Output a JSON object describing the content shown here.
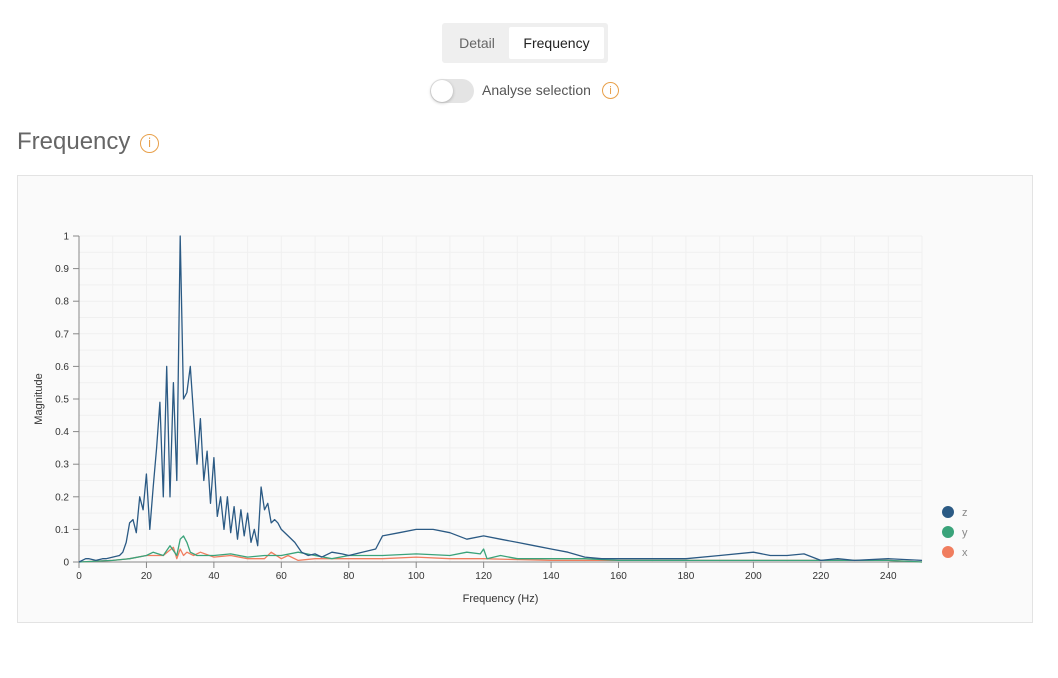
{
  "tabs": [
    {
      "label": "Detail",
      "active": false
    },
    {
      "label": "Frequency",
      "active": true
    }
  ],
  "analyse_toggle": {
    "label": "Analyse selection",
    "on": false,
    "info_icon": "info-circle-icon"
  },
  "section": {
    "title": "Frequency",
    "info_icon": "info-circle-icon"
  },
  "colors": {
    "accent": "#e8a04a",
    "z": "#2b5a84",
    "y": "#3aa37a",
    "x": "#f07d5e"
  },
  "chart_data": {
    "type": "line",
    "xlabel": "Frequency (Hz)",
    "ylabel": "Magnitude",
    "xlim": [
      0,
      250
    ],
    "ylim": [
      0,
      1
    ],
    "xticks": [
      0,
      20,
      40,
      60,
      80,
      100,
      120,
      140,
      160,
      180,
      200,
      220,
      240
    ],
    "yticks": [
      0,
      0.1,
      0.2,
      0.3,
      0.4,
      0.5,
      0.6,
      0.7,
      0.8,
      0.9,
      1
    ],
    "grid": true,
    "legend_position": "right",
    "series": [
      {
        "name": "z",
        "x": [
          0,
          2,
          3,
          5,
          7,
          8,
          10,
          12,
          13,
          14,
          15,
          16,
          17,
          18,
          19,
          20,
          21,
          22,
          23,
          24,
          25,
          26,
          27,
          28,
          29,
          30,
          31,
          32,
          33,
          34,
          35,
          36,
          37,
          38,
          39,
          40,
          41,
          42,
          43,
          44,
          45,
          46,
          47,
          48,
          49,
          50,
          51,
          52,
          53,
          54,
          55,
          56,
          57,
          58,
          59,
          60,
          62,
          64,
          66,
          68,
          70,
          72,
          75,
          78,
          80,
          84,
          88,
          90,
          95,
          100,
          105,
          110,
          115,
          120,
          125,
          130,
          135,
          140,
          145,
          150,
          155,
          160,
          170,
          180,
          190,
          200,
          205,
          210,
          215,
          220,
          225,
          230,
          240,
          250
        ],
        "y": [
          0,
          0.01,
          0.01,
          0.005,
          0.01,
          0.01,
          0.015,
          0.02,
          0.03,
          0.06,
          0.12,
          0.13,
          0.09,
          0.2,
          0.16,
          0.27,
          0.1,
          0.23,
          0.35,
          0.49,
          0.2,
          0.6,
          0.2,
          0.55,
          0.25,
          1.0,
          0.5,
          0.52,
          0.6,
          0.45,
          0.3,
          0.44,
          0.25,
          0.34,
          0.18,
          0.32,
          0.14,
          0.2,
          0.1,
          0.2,
          0.09,
          0.17,
          0.07,
          0.16,
          0.08,
          0.15,
          0.06,
          0.1,
          0.05,
          0.23,
          0.16,
          0.18,
          0.12,
          0.13,
          0.12,
          0.1,
          0.08,
          0.06,
          0.03,
          0.02,
          0.025,
          0.015,
          0.03,
          0.025,
          0.02,
          0.03,
          0.04,
          0.08,
          0.09,
          0.1,
          0.1,
          0.09,
          0.07,
          0.08,
          0.07,
          0.06,
          0.05,
          0.04,
          0.03,
          0.015,
          0.01,
          0.01,
          0.01,
          0.01,
          0.02,
          0.03,
          0.02,
          0.02,
          0.025,
          0.005,
          0.01,
          0.005,
          0.01,
          0.005
        ]
      },
      {
        "name": "y",
        "x": [
          0,
          10,
          15,
          20,
          22,
          25,
          27,
          29,
          30,
          31,
          32,
          33,
          35,
          40,
          45,
          50,
          55,
          60,
          65,
          70,
          75,
          80,
          90,
          100,
          110,
          115,
          119,
          120,
          121,
          125,
          130,
          140,
          150,
          160,
          180,
          200,
          220,
          240,
          250
        ],
        "y": [
          0,
          0.005,
          0.01,
          0.02,
          0.03,
          0.02,
          0.05,
          0.02,
          0.07,
          0.08,
          0.06,
          0.03,
          0.02,
          0.02,
          0.025,
          0.015,
          0.02,
          0.02,
          0.03,
          0.02,
          0.01,
          0.02,
          0.02,
          0.025,
          0.02,
          0.03,
          0.025,
          0.04,
          0.01,
          0.02,
          0.01,
          0.01,
          0.01,
          0.005,
          0.005,
          0.005,
          0.005,
          0.005,
          0
        ]
      },
      {
        "name": "x",
        "x": [
          0,
          10,
          15,
          20,
          25,
          28,
          29,
          30,
          31,
          32,
          34,
          36,
          40,
          45,
          50,
          55,
          57,
          60,
          62,
          65,
          70,
          80,
          90,
          100,
          110,
          120,
          140,
          160,
          180,
          200,
          220,
          240,
          250
        ],
        "y": [
          0,
          0.005,
          0.01,
          0.02,
          0.02,
          0.045,
          0.01,
          0.04,
          0.02,
          0.03,
          0.02,
          0.03,
          0.015,
          0.02,
          0.01,
          0.01,
          0.03,
          0.01,
          0.02,
          0.005,
          0.01,
          0.01,
          0.01,
          0.015,
          0.01,
          0.01,
          0.005,
          0.005,
          0.005,
          0.005,
          0.005,
          0.005,
          0
        ]
      }
    ]
  }
}
